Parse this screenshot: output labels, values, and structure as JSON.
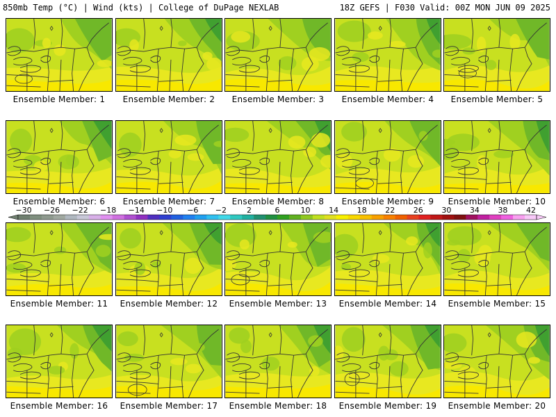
{
  "header": {
    "left_title": "850mb Temp (°C) | Wind (kts) | College of DuPage NEXLAB",
    "right_title": "18Z GEFS | F030 Valid: 00Z MON JUN 09 2025"
  },
  "colorbar": {
    "ticks": [
      "-30",
      "-26",
      "-22",
      "-18",
      "-14",
      "-10",
      "-6",
      "-2",
      "2",
      "6",
      "10",
      "14",
      "18",
      "22",
      "26",
      "30",
      "34",
      "38",
      "42"
    ],
    "colors": [
      "#6f7f6f",
      "#7f8f7f",
      "#8f9a8f",
      "#a0a8a0",
      "#b0b8c0",
      "#c8c8d8",
      "#d8b0e8",
      "#e090f0",
      "#d070e0",
      "#b050d0",
      "#9030c0",
      "#5030c0",
      "#3040d0",
      "#2060e0",
      "#2080f0",
      "#20a0f0",
      "#30c0f0",
      "#40d8e8",
      "#30c8c0",
      "#20b0a0",
      "#209070",
      "#209040",
      "#30a020",
      "#60b020",
      "#90c820",
      "#c0e020",
      "#e0e020",
      "#f8f000",
      "#f8d800",
      "#f8c000",
      "#f8a000",
      "#f88000",
      "#f06000",
      "#e84020",
      "#e02020",
      "#c01818",
      "#a01010",
      "#801010",
      "#a01060",
      "#c020a0",
      "#e040c0",
      "#f060e0",
      "#f8a0f0",
      "#f8c8f8"
    ]
  },
  "members": [
    {
      "label": "Ensemble Member: 1"
    },
    {
      "label": "Ensemble Member: 2"
    },
    {
      "label": "Ensemble Member: 3"
    },
    {
      "label": "Ensemble Member: 4"
    },
    {
      "label": "Ensemble Member: 5"
    },
    {
      "label": "Ensemble Member: 6"
    },
    {
      "label": "Ensemble Member: 7"
    },
    {
      "label": "Ensemble Member: 8"
    },
    {
      "label": "Ensemble Member: 9"
    },
    {
      "label": "Ensemble Member: 10"
    },
    {
      "label": "Ensemble Member: 11"
    },
    {
      "label": "Ensemble Member: 12"
    },
    {
      "label": "Ensemble Member: 13"
    },
    {
      "label": "Ensemble Member: 14"
    },
    {
      "label": "Ensemble Member: 15"
    },
    {
      "label": "Ensemble Member: 16"
    },
    {
      "label": "Ensemble Member: 17"
    },
    {
      "label": "Ensemble Member: 18"
    },
    {
      "label": "Ensemble Member: 19"
    },
    {
      "label": "Ensemble Member: 20"
    }
  ],
  "map_colors": {
    "warm_yellow": "#f8e800",
    "yellow": "#e8e820",
    "yellow_green": "#c8e020",
    "light_green": "#a0d020",
    "green": "#70b828",
    "dark_green": "#40a030",
    "lines": "#333333"
  }
}
